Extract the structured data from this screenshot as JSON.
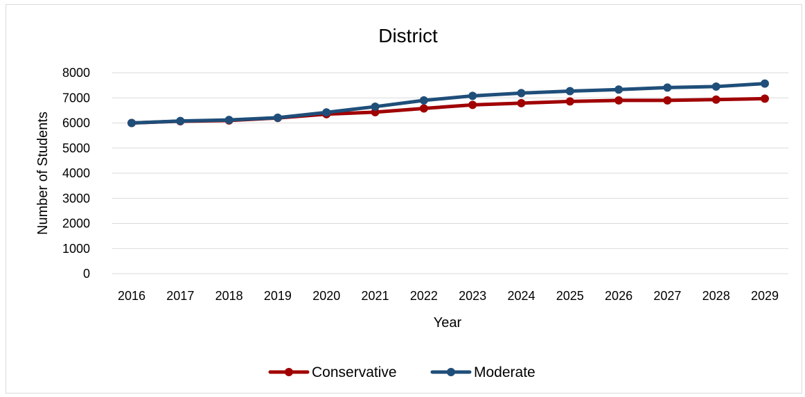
{
  "chart_data": {
    "type": "line",
    "title": "District",
    "xlabel": "Year",
    "ylabel": "Number of Students",
    "x": [
      "2016",
      "2017",
      "2018",
      "2019",
      "2020",
      "2021",
      "2022",
      "2023",
      "2024",
      "2025",
      "2026",
      "2027",
      "2028",
      "2029"
    ],
    "ylim": [
      0,
      8000
    ],
    "yticks": [
      0,
      1000,
      2000,
      3000,
      4000,
      5000,
      6000,
      7000,
      8000
    ],
    "grid": true,
    "legend_position": "bottom",
    "series": [
      {
        "name": "Conservative",
        "color": "#A00000",
        "values": [
          6000,
          6070,
          6100,
          6200,
          6350,
          6430,
          6580,
          6720,
          6790,
          6860,
          6900,
          6900,
          6930,
          6970
        ]
      },
      {
        "name": "Moderate",
        "color": "#1F4E79",
        "values": [
          6000,
          6080,
          6120,
          6210,
          6420,
          6650,
          6900,
          7080,
          7190,
          7270,
          7330,
          7410,
          7450,
          7570
        ]
      }
    ]
  }
}
